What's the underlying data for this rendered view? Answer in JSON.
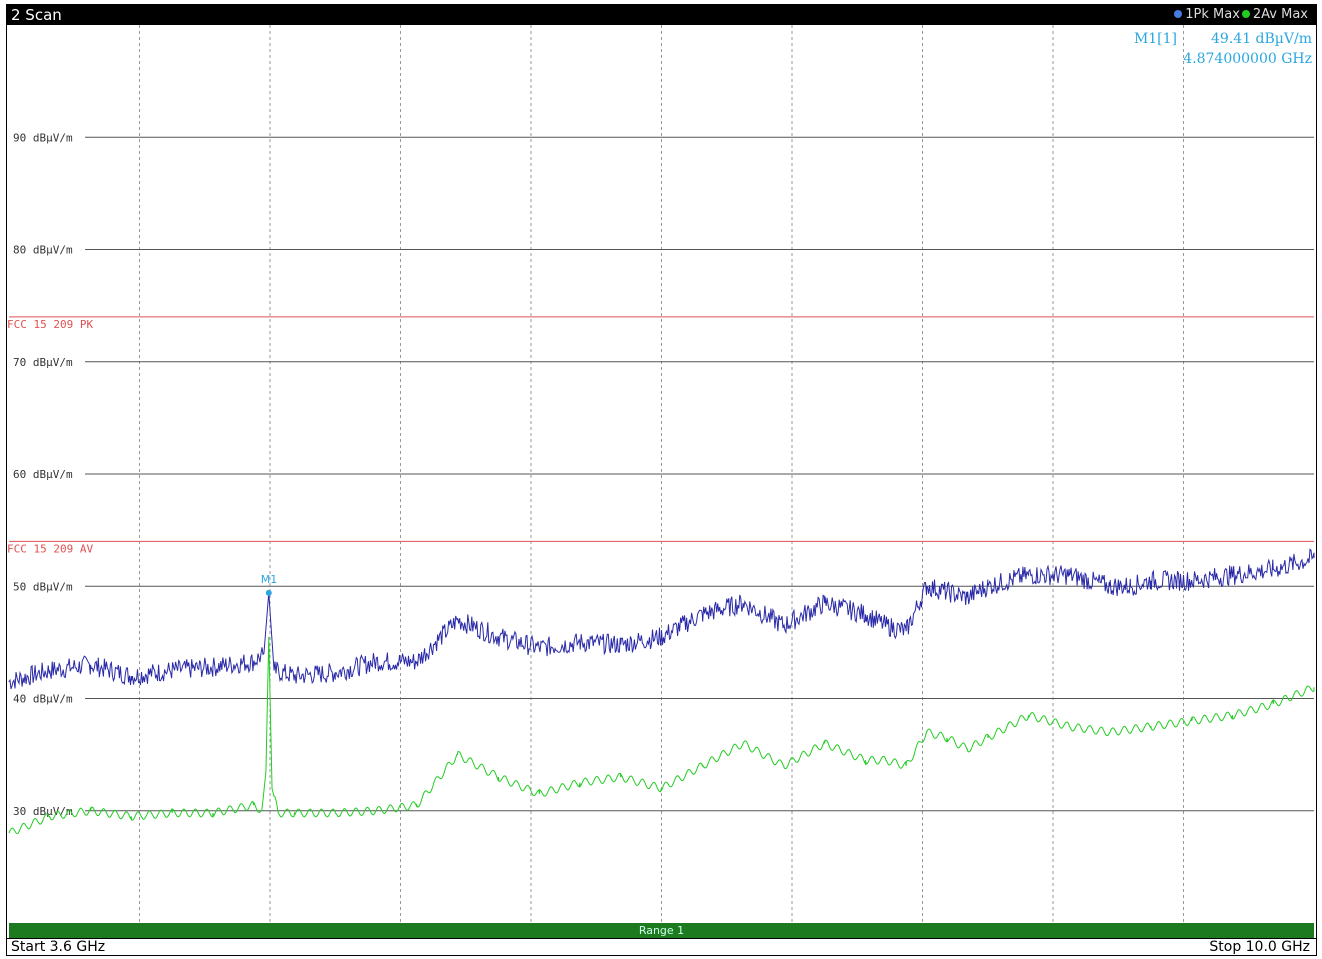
{
  "header": {
    "title": "2 Scan",
    "legend": [
      {
        "label": "1Pk Max",
        "color": "#2a2aa8"
      },
      {
        "label": "2Av Max",
        "color": "#22cc22"
      }
    ]
  },
  "marker": {
    "name": "M1[1]",
    "level": "49.41 dBµV/m",
    "frequency": "4.874000000 GHz",
    "plot_label": "M1"
  },
  "footer": {
    "range_label": "Range 1",
    "start": "Start 3.6 GHz",
    "stop": "Stop 10.0 GHz"
  },
  "chart_data": {
    "type": "line",
    "xlim": [
      3.6,
      10.0
    ],
    "ylim": [
      20,
      100
    ],
    "y_ticks": [
      {
        "value": 90,
        "label": "90 dBµV/m"
      },
      {
        "value": 80,
        "label": "80 dBµV/m"
      },
      {
        "value": 70,
        "label": "70 dBµV/m"
      },
      {
        "value": 60,
        "label": "60 dBµV/m"
      },
      {
        "value": 50,
        "label": "50 dBµV/m"
      },
      {
        "value": 40,
        "label": "40 dBµV/m"
      },
      {
        "value": 30,
        "label": "30 dBµV/m"
      }
    ],
    "limit_lines": [
      {
        "label": "FCC 15 209 PK",
        "value": 74,
        "color": "#e05050"
      },
      {
        "label": "FCC 15 209 AV",
        "value": 54,
        "color": "#e05050"
      }
    ],
    "marker_point": {
      "x": 4.874,
      "y": 49.41
    },
    "series": [
      {
        "name": "1Pk Max",
        "color": "#2a2aa8",
        "x": [
          3.6,
          3.8,
          4.0,
          4.2,
          4.4,
          4.6,
          4.8,
          4.85,
          4.874,
          4.9,
          5.0,
          5.2,
          5.4,
          5.6,
          5.8,
          6.0,
          6.2,
          6.4,
          6.6,
          6.8,
          7.0,
          7.2,
          7.4,
          7.6,
          7.8,
          7.9,
          8.0,
          8.1,
          8.2,
          8.3,
          8.4,
          8.6,
          8.8,
          9.0,
          9.1,
          9.2,
          9.4,
          9.6,
          9.8,
          10.0
        ],
        "y": [
          41.5,
          42.5,
          43.0,
          42.0,
          42.5,
          42.8,
          43.3,
          44,
          49.41,
          42.5,
          42.0,
          42.3,
          43.3,
          43.3,
          47.0,
          45.5,
          44.5,
          45.0,
          44.8,
          45.5,
          47.5,
          48.5,
          46.5,
          48.5,
          47.5,
          46.5,
          46.0,
          50.0,
          49.5,
          49.0,
          50.0,
          51.0,
          51.0,
          50.0,
          50.0,
          50.5,
          50.5,
          51.0,
          51.5,
          52.5
        ]
      },
      {
        "name": "2Av Max",
        "color": "#22cc22",
        "x": [
          3.6,
          3.8,
          4.0,
          4.2,
          4.4,
          4.6,
          4.8,
          4.84,
          4.86,
          4.874,
          4.89,
          4.92,
          5.0,
          5.2,
          5.4,
          5.6,
          5.8,
          6.0,
          6.2,
          6.4,
          6.6,
          6.8,
          7.0,
          7.2,
          7.4,
          7.6,
          7.8,
          7.9,
          8.0,
          8.1,
          8.2,
          8.3,
          8.4,
          8.6,
          8.8,
          9.0,
          9.2,
          9.4,
          9.6,
          9.8,
          10.0
        ],
        "y": [
          28.0,
          29.5,
          30.0,
          29.5,
          29.8,
          29.8,
          30.5,
          30.0,
          33.5,
          45.5,
          32.0,
          29.8,
          29.8,
          29.8,
          30.0,
          30.5,
          35.0,
          33.0,
          31.5,
          32.5,
          33.0,
          32.0,
          34.0,
          36.0,
          34.0,
          36.0,
          34.5,
          34.5,
          34.0,
          37.0,
          36.5,
          35.5,
          36.5,
          38.5,
          37.5,
          37.0,
          37.5,
          38.0,
          38.5,
          39.5,
          41.0
        ]
      }
    ]
  }
}
